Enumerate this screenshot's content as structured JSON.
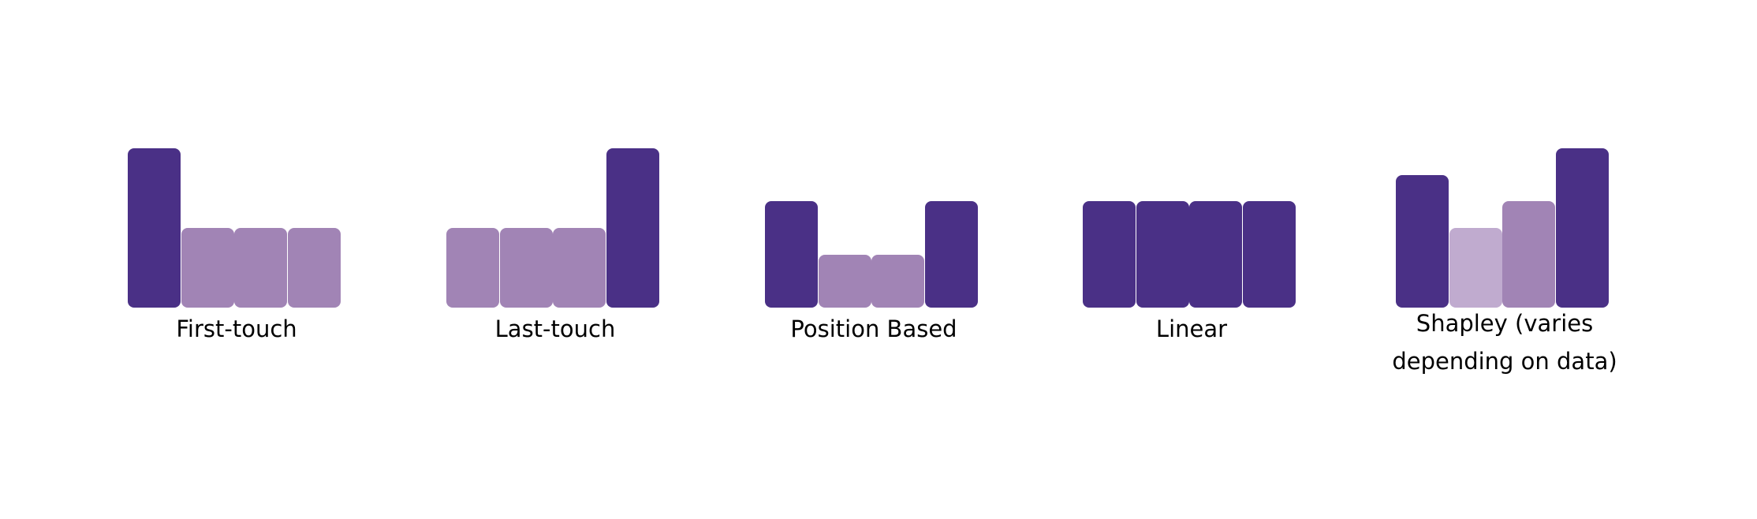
{
  "colors": {
    "dark": "#4a3086",
    "medium": "#a184b5",
    "light": "#c0abcf"
  },
  "level_heights": {
    "tall": 1.0,
    "high": 0.83,
    "medium": 0.67,
    "low": 0.5,
    "short": 0.33
  },
  "models": [
    {
      "label": "First-touch",
      "bars": [
        {
          "level": "tall",
          "color": "dark"
        },
        {
          "level": "low",
          "color": "medium"
        },
        {
          "level": "low",
          "color": "medium"
        },
        {
          "level": "low",
          "color": "medium"
        }
      ]
    },
    {
      "label": "Last-touch",
      "bars": [
        {
          "level": "low",
          "color": "medium"
        },
        {
          "level": "low",
          "color": "medium"
        },
        {
          "level": "low",
          "color": "medium"
        },
        {
          "level": "tall",
          "color": "dark"
        }
      ]
    },
    {
      "label": "Position Based",
      "bars": [
        {
          "level": "medium",
          "color": "dark"
        },
        {
          "level": "short",
          "color": "medium"
        },
        {
          "level": "short",
          "color": "medium"
        },
        {
          "level": "medium",
          "color": "dark"
        }
      ]
    },
    {
      "label": "Linear",
      "bars": [
        {
          "level": "medium",
          "color": "dark"
        },
        {
          "level": "medium",
          "color": "dark"
        },
        {
          "level": "medium",
          "color": "dark"
        },
        {
          "level": "medium",
          "color": "dark"
        }
      ]
    },
    {
      "label": "Shapley (varies\ndepending on data)",
      "bars": [
        {
          "level": "high",
          "color": "dark"
        },
        {
          "level": "low",
          "color": "light"
        },
        {
          "level": "medium",
          "color": "medium"
        },
        {
          "level": "tall",
          "color": "dark"
        }
      ]
    }
  ]
}
